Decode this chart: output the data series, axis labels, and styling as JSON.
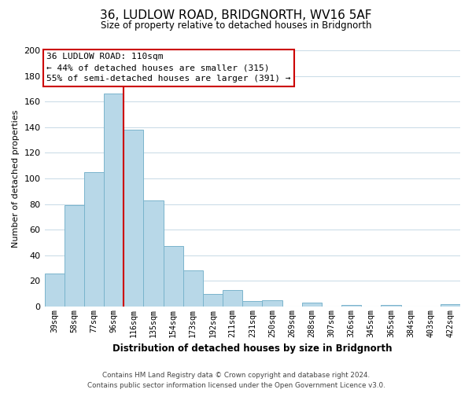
{
  "title": "36, LUDLOW ROAD, BRIDGNORTH, WV16 5AF",
  "subtitle": "Size of property relative to detached houses in Bridgnorth",
  "bar_labels": [
    "39sqm",
    "58sqm",
    "77sqm",
    "96sqm",
    "116sqm",
    "135sqm",
    "154sqm",
    "173sqm",
    "192sqm",
    "211sqm",
    "231sqm",
    "250sqm",
    "269sqm",
    "288sqm",
    "307sqm",
    "326sqm",
    "345sqm",
    "365sqm",
    "384sqm",
    "403sqm",
    "422sqm"
  ],
  "bar_values": [
    26,
    79,
    105,
    166,
    138,
    83,
    47,
    28,
    10,
    13,
    4,
    5,
    0,
    3,
    0,
    1,
    0,
    1,
    0,
    0,
    2
  ],
  "bar_color": "#b8d8e8",
  "bar_edge_color": "#7ab4cc",
  "ylabel": "Number of detached properties",
  "xlabel": "Distribution of detached houses by size in Bridgnorth",
  "ylim": [
    0,
    200
  ],
  "yticks": [
    0,
    20,
    40,
    60,
    80,
    100,
    120,
    140,
    160,
    180,
    200
  ],
  "vline_color": "#cc0000",
  "annotation_title": "36 LUDLOW ROAD: 110sqm",
  "annotation_line1": "← 44% of detached houses are smaller (315)",
  "annotation_line2": "55% of semi-detached houses are larger (391) →",
  "annotation_box_color": "#ffffff",
  "annotation_box_edge_color": "#cc0000",
  "footer_line1": "Contains HM Land Registry data © Crown copyright and database right 2024.",
  "footer_line2": "Contains public sector information licensed under the Open Government Licence v3.0.",
  "background_color": "#ffffff",
  "grid_color": "#ccdde8"
}
